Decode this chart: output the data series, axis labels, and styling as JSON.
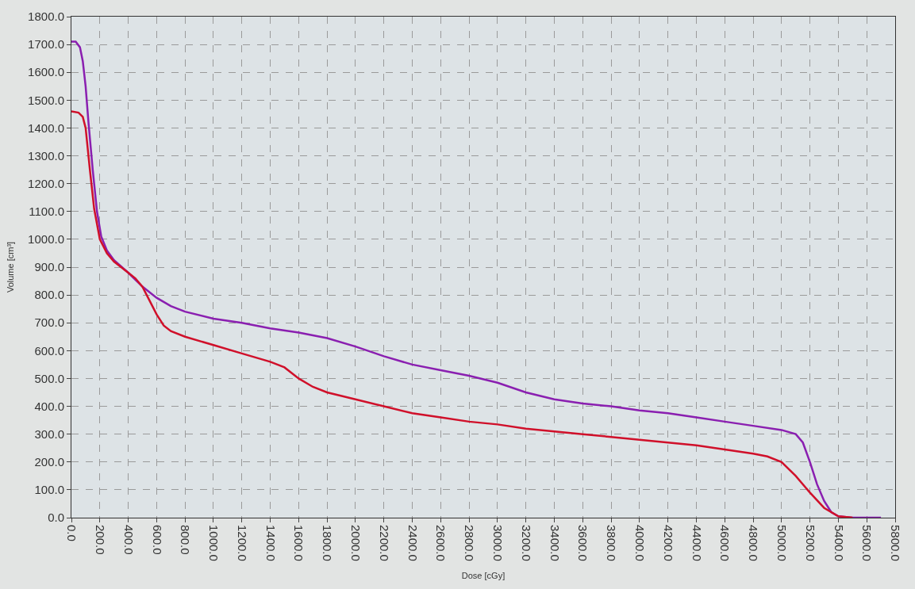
{
  "chart_data": {
    "type": "line",
    "xlabel": "Dose [cGy]",
    "ylabel": "Volume [cm³]",
    "xlim": [
      0,
      5800
    ],
    "ylim": [
      0,
      1800
    ],
    "xticks": [
      {
        "value": 0,
        "label": "0.0"
      },
      {
        "value": 200,
        "label": "200.0"
      },
      {
        "value": 400,
        "label": "400.0"
      },
      {
        "value": 600,
        "label": "600.0"
      },
      {
        "value": 800,
        "label": "800.0"
      },
      {
        "value": 1000,
        "label": "1000.0"
      },
      {
        "value": 1200,
        "label": "1200.0"
      },
      {
        "value": 1400,
        "label": "1400.0"
      },
      {
        "value": 1600,
        "label": "1600.0"
      },
      {
        "value": 1800,
        "label": "1800.0"
      },
      {
        "value": 2000,
        "label": "2000.0"
      },
      {
        "value": 2200,
        "label": "2200.0"
      },
      {
        "value": 2400,
        "label": "2400.0"
      },
      {
        "value": 2600,
        "label": "2600.0"
      },
      {
        "value": 2800,
        "label": "2800.0"
      },
      {
        "value": 3000,
        "label": "3000.0"
      },
      {
        "value": 3200,
        "label": "3200.0"
      },
      {
        "value": 3400,
        "label": "3400.0"
      },
      {
        "value": 3600,
        "label": "3600.0"
      },
      {
        "value": 3800,
        "label": "3800.0"
      },
      {
        "value": 4000,
        "label": "4000.0"
      },
      {
        "value": 4200,
        "label": "4200.0"
      },
      {
        "value": 4400,
        "label": "4400.0"
      },
      {
        "value": 4600,
        "label": "4600.0"
      },
      {
        "value": 4800,
        "label": "4800.0"
      },
      {
        "value": 5000,
        "label": "5000.0"
      },
      {
        "value": 5200,
        "label": "5200.0"
      },
      {
        "value": 5400,
        "label": "5400.0"
      },
      {
        "value": 5600,
        "label": "5600.0"
      },
      {
        "value": 5800,
        "label": "5800.0"
      }
    ],
    "yticks": [
      {
        "value": 0,
        "label": "0.0"
      },
      {
        "value": 100,
        "label": "100.0"
      },
      {
        "value": 200,
        "label": "200.0"
      },
      {
        "value": 300,
        "label": "300.0"
      },
      {
        "value": 400,
        "label": "400.0"
      },
      {
        "value": 500,
        "label": "500.0"
      },
      {
        "value": 600,
        "label": "600.0"
      },
      {
        "value": 700,
        "label": "700.0"
      },
      {
        "value": 800,
        "label": "800.0"
      },
      {
        "value": 900,
        "label": "900.0"
      },
      {
        "value": 1000,
        "label": "1000.0"
      },
      {
        "value": 1100,
        "label": "1100.0"
      },
      {
        "value": 1200,
        "label": "1200.0"
      },
      {
        "value": 1300,
        "label": "1300.0"
      },
      {
        "value": 1400,
        "label": "1400.0"
      },
      {
        "value": 1500,
        "label": "1500.0"
      },
      {
        "value": 1600,
        "label": "1600.0"
      },
      {
        "value": 1700,
        "label": "1700.0"
      },
      {
        "value": 1800,
        "label": "1800.0"
      }
    ],
    "grid": true,
    "marker": "none",
    "line_style": "solid",
    "series": [
      {
        "color": "#8a1fb0",
        "x": [
          0,
          30,
          60,
          80,
          100,
          120,
          150,
          180,
          210,
          250,
          300,
          400,
          500,
          600,
          700,
          800,
          1000,
          1200,
          1400,
          1600,
          1800,
          2000,
          2200,
          2400,
          2600,
          2800,
          3000,
          3200,
          3400,
          3600,
          3800,
          4000,
          4200,
          4400,
          4600,
          4800,
          5000,
          5100,
          5150,
          5200,
          5250,
          5300,
          5350,
          5400,
          5500,
          5700
        ],
        "values": [
          1710,
          1710,
          1690,
          1640,
          1550,
          1420,
          1250,
          1100,
          1010,
          960,
          925,
          880,
          830,
          790,
          760,
          740,
          715,
          700,
          680,
          665,
          645,
          615,
          580,
          550,
          530,
          510,
          485,
          450,
          425,
          410,
          400,
          385,
          375,
          360,
          345,
          330,
          315,
          300,
          270,
          200,
          120,
          60,
          20,
          5,
          0,
          0
        ]
      },
      {
        "color": "#d0102a",
        "x": [
          0,
          50,
          80,
          100,
          130,
          160,
          200,
          250,
          300,
          400,
          450,
          500,
          550,
          600,
          650,
          700,
          800,
          1000,
          1200,
          1400,
          1500,
          1600,
          1700,
          1800,
          2000,
          2200,
          2400,
          2600,
          2800,
          3000,
          3200,
          3400,
          3600,
          3800,
          4000,
          4200,
          4400,
          4600,
          4800,
          4900,
          5000,
          5100,
          5200,
          5300,
          5400,
          5500
        ],
        "values": [
          1460,
          1455,
          1440,
          1400,
          1250,
          1110,
          1000,
          950,
          920,
          880,
          860,
          830,
          780,
          730,
          690,
          670,
          650,
          620,
          590,
          560,
          540,
          500,
          470,
          450,
          425,
          400,
          375,
          360,
          345,
          335,
          320,
          310,
          300,
          290,
          280,
          270,
          260,
          245,
          230,
          220,
          200,
          150,
          90,
          35,
          5,
          0
        ]
      }
    ]
  }
}
